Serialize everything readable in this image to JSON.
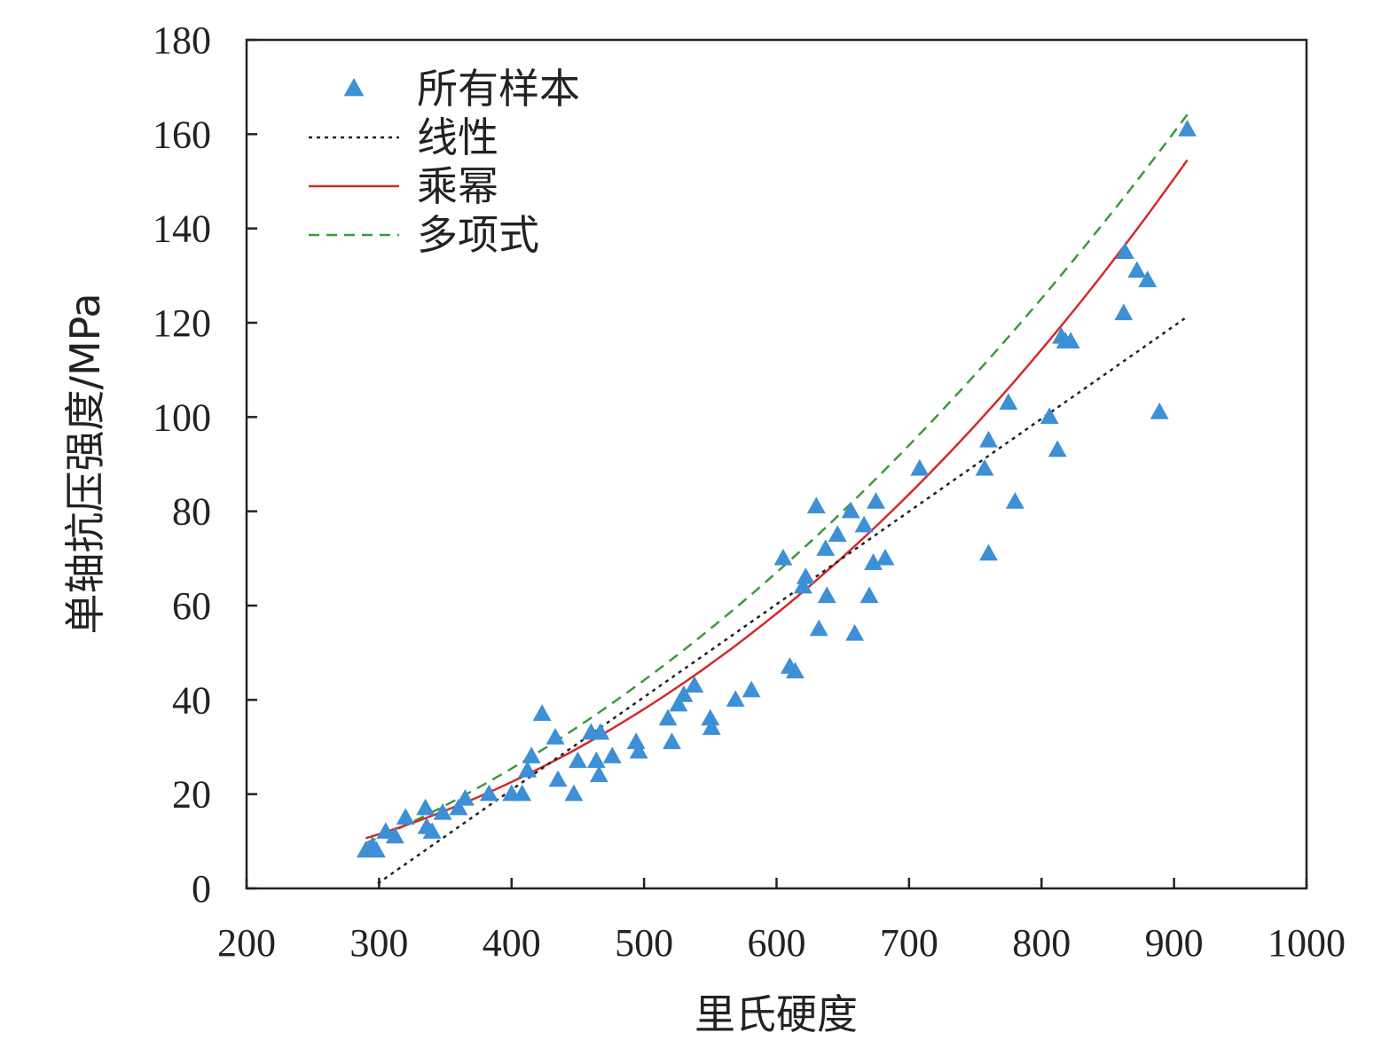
{
  "chart_data": {
    "type": "scatter",
    "xlabel": "里氏硬度",
    "ylabel": "单轴抗压强度/MPa",
    "xlim": [
      200,
      1000
    ],
    "ylim": [
      0,
      180
    ],
    "x_ticks": [
      200,
      300,
      400,
      500,
      600,
      700,
      800,
      900,
      1000
    ],
    "y_ticks": [
      0,
      20,
      40,
      60,
      80,
      100,
      120,
      140,
      160,
      180
    ],
    "grid": false,
    "legend_position": "top-left",
    "colors": {
      "points": "#3d8fd6",
      "linear": "#222222",
      "power": "#d42a2a",
      "polynomial": "#3a9a3a"
    },
    "series": [
      {
        "name": "所有样本",
        "kind": "scatter",
        "points": [
          [
            290,
            8
          ],
          [
            295,
            9
          ],
          [
            298,
            8
          ],
          [
            305,
            12
          ],
          [
            312,
            11
          ],
          [
            320,
            15
          ],
          [
            335,
            17
          ],
          [
            336,
            13
          ],
          [
            340,
            12
          ],
          [
            348,
            16
          ],
          [
            360,
            17
          ],
          [
            365,
            19
          ],
          [
            383,
            20
          ],
          [
            400,
            20
          ],
          [
            408,
            20
          ],
          [
            412,
            25
          ],
          [
            415,
            28
          ],
          [
            423,
            37
          ],
          [
            433,
            32
          ],
          [
            435,
            23
          ],
          [
            447,
            20
          ],
          [
            450,
            27
          ],
          [
            460,
            33
          ],
          [
            464,
            27
          ],
          [
            466,
            24
          ],
          [
            467,
            33
          ],
          [
            476,
            28
          ],
          [
            494,
            31
          ],
          [
            496,
            29
          ],
          [
            518,
            36
          ],
          [
            521,
            31
          ],
          [
            526,
            39
          ],
          [
            530,
            41
          ],
          [
            538,
            43
          ],
          [
            550,
            36
          ],
          [
            551,
            34
          ],
          [
            569,
            40
          ],
          [
            581,
            42
          ],
          [
            605,
            70
          ],
          [
            610,
            47
          ],
          [
            614,
            46
          ],
          [
            620,
            64
          ],
          [
            622,
            66
          ],
          [
            630,
            81
          ],
          [
            632,
            55
          ],
          [
            637,
            72
          ],
          [
            638,
            62
          ],
          [
            646,
            75
          ],
          [
            656,
            80
          ],
          [
            659,
            54
          ],
          [
            666,
            77
          ],
          [
            670,
            62
          ],
          [
            673,
            69
          ],
          [
            675,
            82
          ],
          [
            682,
            70
          ],
          [
            708,
            89
          ],
          [
            757,
            89
          ],
          [
            760,
            95
          ],
          [
            760,
            71
          ],
          [
            775,
            103
          ],
          [
            780,
            82
          ],
          [
            806,
            100
          ],
          [
            812,
            93
          ],
          [
            815,
            117
          ],
          [
            818,
            116
          ],
          [
            822,
            116
          ],
          [
            862,
            122
          ],
          [
            863,
            135
          ],
          [
            872,
            131
          ],
          [
            880,
            129
          ],
          [
            889,
            101
          ],
          [
            910,
            161
          ]
        ]
      },
      {
        "name": "线性",
        "kind": "line",
        "style": "dotted",
        "x_range": [
          299,
          908
        ],
        "slope": 0.1968,
        "intercept": -57.8
      },
      {
        "name": "乘幂",
        "kind": "line",
        "style": "solid",
        "x_range": [
          290,
          910
        ],
        "coefficient": 1.84e-05,
        "exponent": 2.34
      },
      {
        "name": "多项式",
        "kind": "line",
        "style": "dashed",
        "x_range": [
          290,
          912
        ],
        "a": 0.0002066,
        "b": 0.00138,
        "c": -8.18
      }
    ]
  }
}
